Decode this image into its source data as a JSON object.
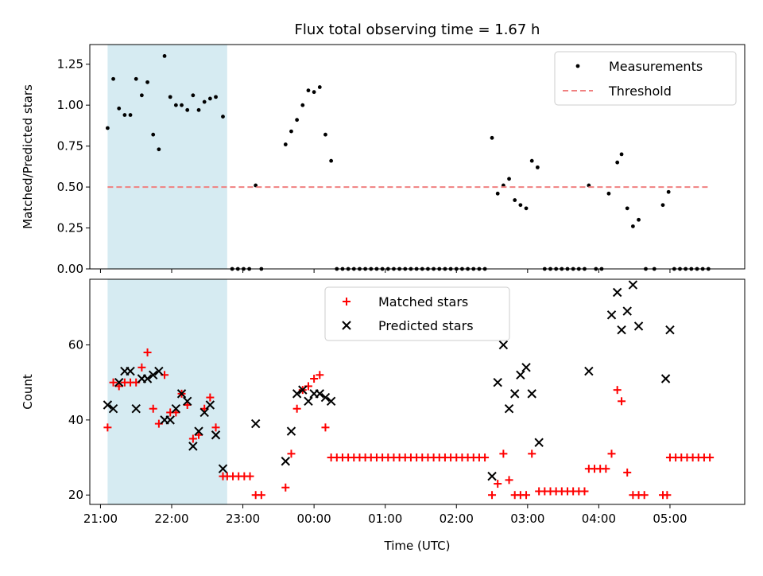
{
  "chart_data": [
    {
      "type": "scatter",
      "title": "Flux total observing time = 1.67 h",
      "xlabel": "",
      "ylabel": "Matched/Predicted stars",
      "ylim": [
        0,
        1.37
      ],
      "xlim": [
        20.85,
        30.05
      ],
      "x_unit": "hours UTC (values above 24 are after midnight)",
      "yticks": [
        0.0,
        0.25,
        0.5,
        0.75,
        1.0,
        1.25
      ],
      "ytick_labels": [
        "0.00",
        "0.25",
        "0.50",
        "0.75",
        "1.00",
        "1.25"
      ],
      "xticks": [
        21,
        22,
        23,
        24,
        25,
        26,
        27,
        28,
        29
      ],
      "highlight_span": {
        "x_start": 21.1,
        "x_end": 22.78,
        "color": "#add8e6"
      },
      "legend_position": "top-right",
      "series": [
        {
          "name": "Measurements",
          "kind": "points",
          "color": "#000000",
          "points": [
            [
              21.1,
              0.86
            ],
            [
              21.18,
              1.16
            ],
            [
              21.26,
              0.98
            ],
            [
              21.34,
              0.94
            ],
            [
              21.42,
              0.94
            ],
            [
              21.5,
              1.16
            ],
            [
              21.58,
              1.06
            ],
            [
              21.66,
              1.14
            ],
            [
              21.74,
              0.82
            ],
            [
              21.82,
              0.73
            ],
            [
              21.9,
              1.3
            ],
            [
              21.98,
              1.05
            ],
            [
              22.06,
              1.0
            ],
            [
              22.14,
              1.0
            ],
            [
              22.22,
              0.97
            ],
            [
              22.3,
              1.06
            ],
            [
              22.38,
              0.97
            ],
            [
              22.46,
              1.02
            ],
            [
              22.54,
              1.04
            ],
            [
              22.62,
              1.05
            ],
            [
              22.72,
              0.93
            ],
            [
              22.85,
              0
            ],
            [
              22.93,
              0
            ],
            [
              23.01,
              0
            ],
            [
              23.09,
              0
            ],
            [
              23.18,
              0.51
            ],
            [
              23.26,
              0
            ],
            [
              23.6,
              0.76
            ],
            [
              23.68,
              0.84
            ],
            [
              23.76,
              0.91
            ],
            [
              23.84,
              1.0
            ],
            [
              23.92,
              1.09
            ],
            [
              24.0,
              1.08
            ],
            [
              24.08,
              1.11
            ],
            [
              24.16,
              0.82
            ],
            [
              24.24,
              0.66
            ],
            [
              24.32,
              0
            ],
            [
              24.4,
              0
            ],
            [
              24.48,
              0
            ],
            [
              24.56,
              0
            ],
            [
              24.64,
              0
            ],
            [
              24.72,
              0
            ],
            [
              24.8,
              0
            ],
            [
              24.88,
              0
            ],
            [
              24.96,
              0
            ],
            [
              25.04,
              0
            ],
            [
              25.12,
              0
            ],
            [
              25.2,
              0
            ],
            [
              25.28,
              0
            ],
            [
              25.36,
              0
            ],
            [
              25.44,
              0
            ],
            [
              25.52,
              0
            ],
            [
              25.6,
              0
            ],
            [
              25.68,
              0
            ],
            [
              25.76,
              0
            ],
            [
              25.84,
              0
            ],
            [
              25.92,
              0
            ],
            [
              26.0,
              0
            ],
            [
              26.08,
              0
            ],
            [
              26.16,
              0
            ],
            [
              26.24,
              0
            ],
            [
              26.32,
              0
            ],
            [
              26.4,
              0
            ],
            [
              26.5,
              0.8
            ],
            [
              26.58,
              0.46
            ],
            [
              26.66,
              0.51
            ],
            [
              26.74,
              0.55
            ],
            [
              26.82,
              0.42
            ],
            [
              26.9,
              0.39
            ],
            [
              26.98,
              0.37
            ],
            [
              27.06,
              0.66
            ],
            [
              27.14,
              0.62
            ],
            [
              27.24,
              0
            ],
            [
              27.32,
              0
            ],
            [
              27.4,
              0
            ],
            [
              27.48,
              0
            ],
            [
              27.56,
              0
            ],
            [
              27.64,
              0
            ],
            [
              27.72,
              0
            ],
            [
              27.8,
              0
            ],
            [
              27.86,
              0.51
            ],
            [
              27.96,
              0
            ],
            [
              28.04,
              0
            ],
            [
              28.14,
              0.46
            ],
            [
              28.26,
              0.65
            ],
            [
              28.32,
              0.7
            ],
            [
              28.4,
              0.37
            ],
            [
              28.48,
              0.26
            ],
            [
              28.56,
              0.3
            ],
            [
              28.66,
              0
            ],
            [
              28.78,
              0
            ],
            [
              28.9,
              0.39
            ],
            [
              28.98,
              0.47
            ],
            [
              29.06,
              0
            ],
            [
              29.14,
              0
            ],
            [
              29.22,
              0
            ],
            [
              29.3,
              0
            ],
            [
              29.38,
              0
            ],
            [
              29.46,
              0
            ],
            [
              29.54,
              0
            ]
          ]
        },
        {
          "name": "Threshold",
          "kind": "dashed-line",
          "color": "#f08080",
          "x": [
            21.1,
            29.55
          ],
          "y": [
            0.5,
            0.5
          ]
        }
      ]
    },
    {
      "type": "scatter",
      "title": "",
      "xlabel": "Time (UTC)",
      "ylabel": "Count",
      "ylim": [
        17.5,
        77.5
      ],
      "xlim": [
        20.85,
        30.05
      ],
      "yticks": [
        20,
        40,
        60
      ],
      "xticks": [
        21,
        22,
        23,
        24,
        25,
        26,
        27,
        28,
        29
      ],
      "xtick_labels": [
        "21:00",
        "22:00",
        "23:00",
        "00:00",
        "01:00",
        "02:00",
        "03:00",
        "04:00",
        "05:00"
      ],
      "highlight_span": {
        "x_start": 21.1,
        "x_end": 22.78,
        "color": "#add8e6"
      },
      "legend_position": "top-center",
      "series": [
        {
          "name": "Matched stars",
          "marker": "plus",
          "color": "#ff0000",
          "points": [
            [
              21.1,
              38
            ],
            [
              21.18,
              50
            ],
            [
              21.26,
              49
            ],
            [
              21.34,
              50
            ],
            [
              21.42,
              50
            ],
            [
              21.5,
              50
            ],
            [
              21.58,
              54
            ],
            [
              21.66,
              58
            ],
            [
              21.74,
              43
            ],
            [
              21.82,
              39
            ],
            [
              21.9,
              52
            ],
            [
              21.98,
              42
            ],
            [
              22.06,
              42
            ],
            [
              22.14,
              47
            ],
            [
              22.22,
              44
            ],
            [
              22.3,
              35
            ],
            [
              22.38,
              36
            ],
            [
              22.46,
              43
            ],
            [
              22.54,
              46
            ],
            [
              22.62,
              38
            ],
            [
              22.72,
              25
            ],
            [
              22.78,
              25
            ],
            [
              22.86,
              25
            ],
            [
              22.94,
              25
            ],
            [
              23.02,
              25
            ],
            [
              23.1,
              25
            ],
            [
              23.18,
              20
            ],
            [
              23.26,
              20
            ],
            [
              23.6,
              22
            ],
            [
              23.68,
              31
            ],
            [
              23.76,
              43
            ],
            [
              23.84,
              48
            ],
            [
              23.92,
              49
            ],
            [
              24.0,
              51
            ],
            [
              24.08,
              52
            ],
            [
              24.16,
              38
            ],
            [
              24.24,
              30
            ],
            [
              24.32,
              30
            ],
            [
              24.4,
              30
            ],
            [
              24.48,
              30
            ],
            [
              24.56,
              30
            ],
            [
              24.64,
              30
            ],
            [
              24.72,
              30
            ],
            [
              24.8,
              30
            ],
            [
              24.88,
              30
            ],
            [
              24.96,
              30
            ],
            [
              25.04,
              30
            ],
            [
              25.12,
              30
            ],
            [
              25.2,
              30
            ],
            [
              25.28,
              30
            ],
            [
              25.36,
              30
            ],
            [
              25.44,
              30
            ],
            [
              25.52,
              30
            ],
            [
              25.6,
              30
            ],
            [
              25.68,
              30
            ],
            [
              25.76,
              30
            ],
            [
              25.84,
              30
            ],
            [
              25.92,
              30
            ],
            [
              26.0,
              30
            ],
            [
              26.08,
              30
            ],
            [
              26.16,
              30
            ],
            [
              26.24,
              30
            ],
            [
              26.32,
              30
            ],
            [
              26.4,
              30
            ],
            [
              26.5,
              20
            ],
            [
              26.58,
              23
            ],
            [
              26.66,
              31
            ],
            [
              26.74,
              24
            ],
            [
              26.82,
              20
            ],
            [
              26.9,
              20
            ],
            [
              26.98,
              20
            ],
            [
              27.06,
              31
            ],
            [
              27.16,
              21
            ],
            [
              27.24,
              21
            ],
            [
              27.32,
              21
            ],
            [
              27.4,
              21
            ],
            [
              27.48,
              21
            ],
            [
              27.56,
              21
            ],
            [
              27.64,
              21
            ],
            [
              27.72,
              21
            ],
            [
              27.8,
              21
            ],
            [
              27.86,
              27
            ],
            [
              27.94,
              27
            ],
            [
              28.02,
              27
            ],
            [
              28.1,
              27
            ],
            [
              28.18,
              31
            ],
            [
              28.26,
              48
            ],
            [
              28.32,
              45
            ],
            [
              28.4,
              26
            ],
            [
              28.48,
              20
            ],
            [
              28.56,
              20
            ],
            [
              28.64,
              20
            ],
            [
              28.9,
              20
            ],
            [
              28.96,
              20
            ],
            [
              29.0,
              30
            ],
            [
              29.08,
              30
            ],
            [
              29.16,
              30
            ],
            [
              29.24,
              30
            ],
            [
              29.32,
              30
            ],
            [
              29.4,
              30
            ],
            [
              29.48,
              30
            ],
            [
              29.56,
              30
            ]
          ]
        },
        {
          "name": "Predicted stars",
          "marker": "x",
          "color": "#000000",
          "points": [
            [
              21.1,
              44
            ],
            [
              21.18,
              43
            ],
            [
              21.26,
              50
            ],
            [
              21.34,
              53
            ],
            [
              21.42,
              53
            ],
            [
              21.5,
              43
            ],
            [
              21.58,
              51
            ],
            [
              21.66,
              51
            ],
            [
              21.74,
              52
            ],
            [
              21.82,
              53
            ],
            [
              21.9,
              40
            ],
            [
              21.98,
              40
            ],
            [
              22.06,
              43
            ],
            [
              22.14,
              47
            ],
            [
              22.22,
              45
            ],
            [
              22.3,
              33
            ],
            [
              22.38,
              37
            ],
            [
              22.46,
              42
            ],
            [
              22.54,
              44
            ],
            [
              22.62,
              36
            ],
            [
              22.72,
              27
            ],
            [
              23.18,
              39
            ],
            [
              23.6,
              29
            ],
            [
              23.68,
              37
            ],
            [
              23.76,
              47
            ],
            [
              23.84,
              48
            ],
            [
              23.92,
              45
            ],
            [
              24.0,
              47
            ],
            [
              24.08,
              47
            ],
            [
              24.16,
              46
            ],
            [
              24.24,
              45
            ],
            [
              26.5,
              25
            ],
            [
              26.58,
              50
            ],
            [
              26.66,
              60
            ],
            [
              26.74,
              43
            ],
            [
              26.82,
              47
            ],
            [
              26.9,
              52
            ],
            [
              26.98,
              54
            ],
            [
              27.06,
              47
            ],
            [
              27.16,
              34
            ],
            [
              27.86,
              53
            ],
            [
              28.18,
              68
            ],
            [
              28.26,
              74
            ],
            [
              28.32,
              64
            ],
            [
              28.4,
              69
            ],
            [
              28.48,
              76
            ],
            [
              28.56,
              65
            ],
            [
              28.94,
              51
            ],
            [
              29.0,
              64
            ]
          ]
        }
      ]
    }
  ]
}
